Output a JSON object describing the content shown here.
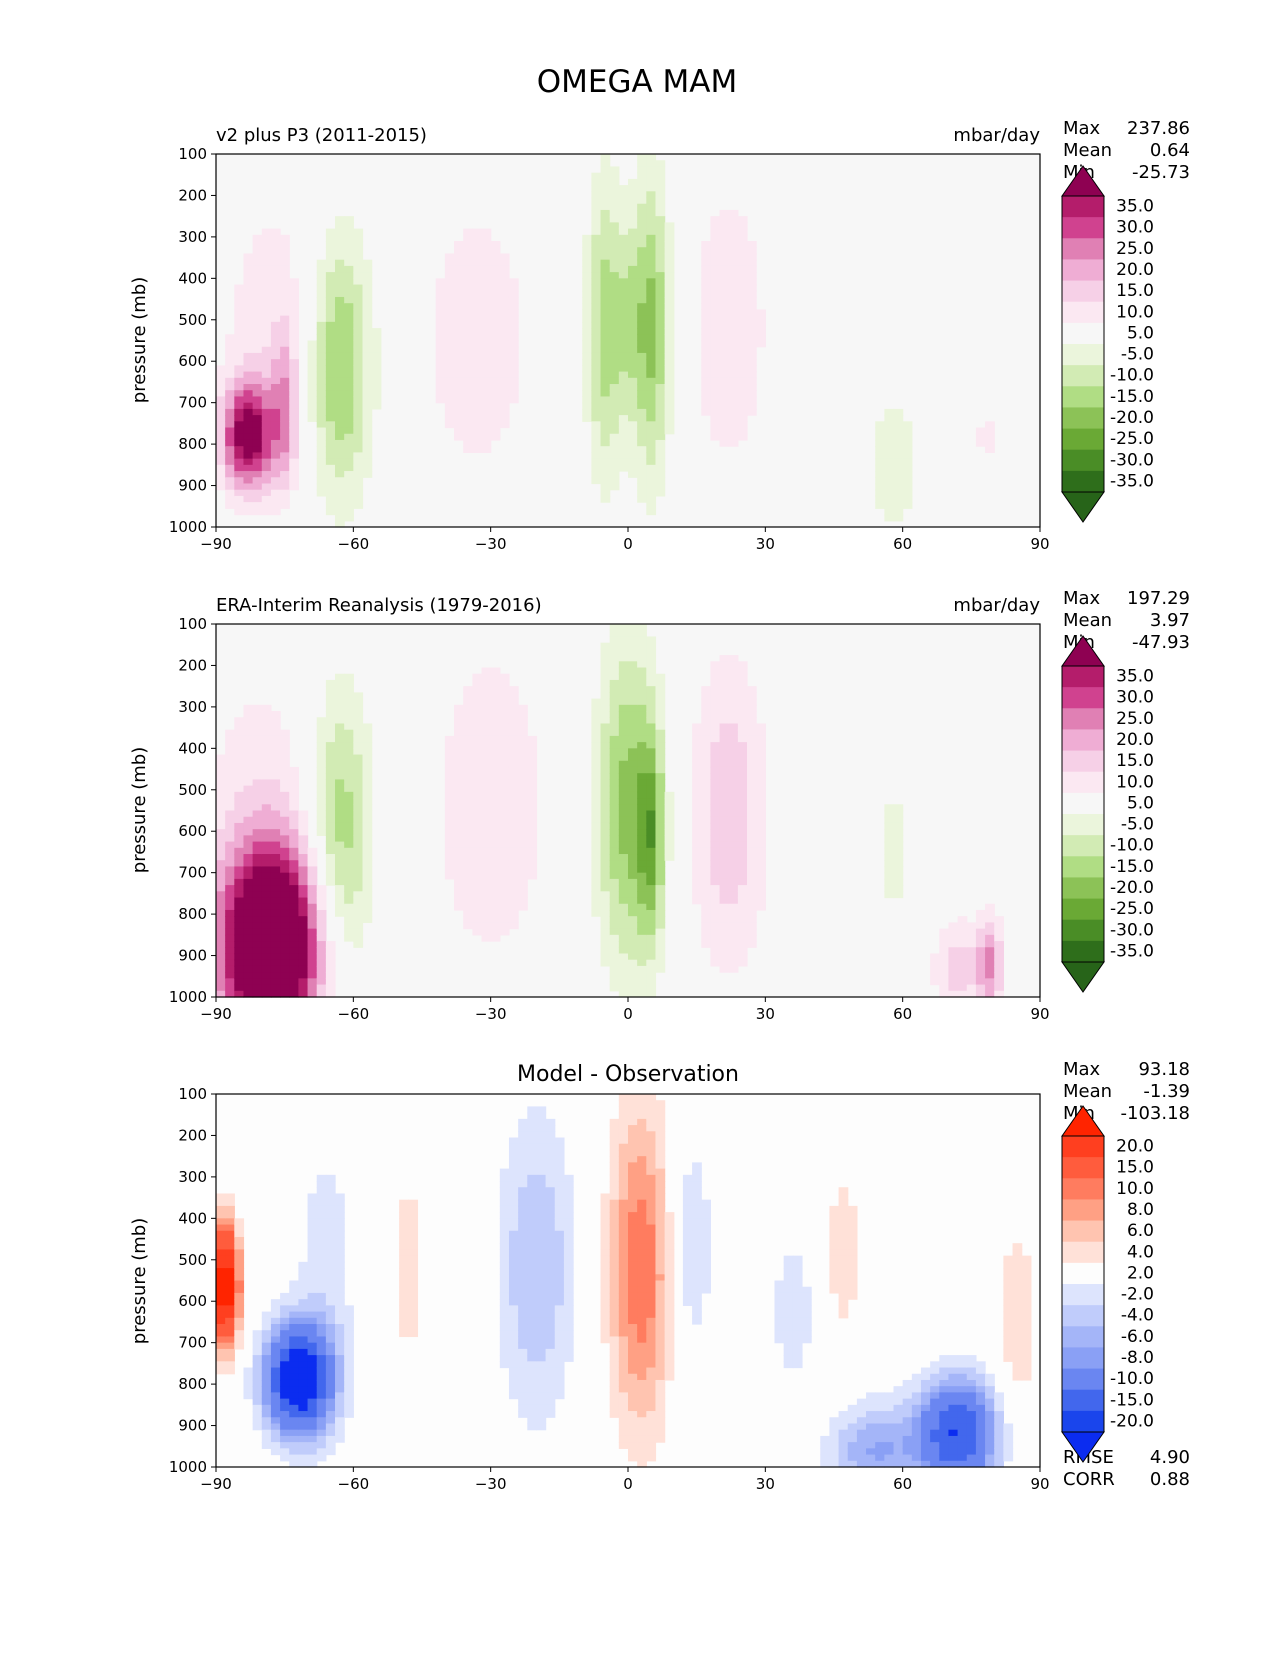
{
  "figure_title": "OMEGA MAM",
  "chart_data": [
    {
      "type": "heatmap",
      "title": "v2 plus P3 (2011-2015)",
      "units": "mbar/day",
      "xlabel": "",
      "ylabel": "pressure (mb)",
      "xlim": [
        -90,
        90
      ],
      "ylim": [
        1000,
        100
      ],
      "xticks": [
        -90,
        -60,
        -30,
        0,
        30,
        60,
        90
      ],
      "xtick_labels": [
        "−90",
        "−60",
        "−30",
        "0",
        "30",
        "60",
        "90"
      ],
      "yticks": [
        100,
        200,
        300,
        400,
        500,
        600,
        700,
        800,
        900,
        1000
      ],
      "stats": {
        "Max": "237.86",
        "Mean": "0.64",
        "Min": "-25.73"
      },
      "colorbar": {
        "levels": [
          "35.0",
          "30.0",
          "25.0",
          "20.0",
          "15.0",
          "10.0",
          "5.0",
          "-5.0",
          "-10.0",
          "-15.0",
          "-20.0",
          "-25.0",
          "-30.0",
          "-35.0"
        ],
        "colors": [
          "#8e0152",
          "#b41d6b",
          "#d0428f",
          "#e080b4",
          "#efadd4",
          "#f6d0e7",
          "#fbe8f2",
          "#f7f7f7",
          "#ebf5dc",
          "#d2ebb4",
          "#b0dd84",
          "#8cc257",
          "#6aa935",
          "#4a8d26",
          "#2e6e1b",
          "#276419"
        ]
      },
      "blobs": [
        {
          "x": -83,
          "p": 780,
          "sx": 4,
          "sp": 90,
          "v": 38
        },
        {
          "x": -77,
          "p": 520,
          "sx": 9,
          "sp": 260,
          "v": 8
        },
        {
          "x": -75,
          "p": 720,
          "sx": 2,
          "sp": 130,
          "v": 16
        },
        {
          "x": -63,
          "p": 610,
          "sx": 5,
          "sp": 230,
          "v": -22
        },
        {
          "x": -33,
          "p": 550,
          "sx": 8,
          "sp": 230,
          "v": 10
        },
        {
          "x": -5,
          "p": 520,
          "sx": 3,
          "sp": 260,
          "v": -18
        },
        {
          "x": 5,
          "p": 520,
          "sx": 3,
          "sp": 260,
          "v": -22
        },
        {
          "x": 0,
          "p": 500,
          "sx": 2,
          "sp": 160,
          "v": -8
        },
        {
          "x": 22,
          "p": 520,
          "sx": 6,
          "sp": 250,
          "v": 10
        },
        {
          "x": 58,
          "p": 850,
          "sx": 7,
          "sp": 230,
          "v": -6
        },
        {
          "x": 78,
          "p": 780,
          "sx": 2,
          "sp": 110,
          "v": 6
        }
      ]
    },
    {
      "type": "heatmap",
      "title": "ERA-Interim Reanalysis (1979-2016)",
      "units": "mbar/day",
      "xlabel": "",
      "ylabel": "pressure (mb)",
      "xlim": [
        -90,
        90
      ],
      "ylim": [
        1000,
        100
      ],
      "xticks": [
        -90,
        -60,
        -30,
        0,
        30,
        60,
        90
      ],
      "xtick_labels": [
        "−90",
        "−60",
        "−30",
        "0",
        "30",
        "60",
        "90"
      ],
      "yticks": [
        100,
        200,
        300,
        400,
        500,
        600,
        700,
        800,
        900,
        1000
      ],
      "stats": {
        "Max": "197.29",
        "Mean": "3.97",
        "Min": "-47.93"
      },
      "colorbar": {
        "levels": [
          "35.0",
          "30.0",
          "25.0",
          "20.0",
          "15.0",
          "10.0",
          "5.0",
          "-5.0",
          "-10.0",
          "-15.0",
          "-20.0",
          "-25.0",
          "-30.0",
          "-35.0"
        ],
        "colors": [
          "#8e0152",
          "#b41d6b",
          "#d0428f",
          "#e080b4",
          "#efadd4",
          "#f6d0e7",
          "#fbe8f2",
          "#f7f7f7",
          "#ebf5dc",
          "#d2ebb4",
          "#b0dd84",
          "#8cc257",
          "#6aa935",
          "#4a8d26",
          "#2e6e1b",
          "#276419"
        ]
      },
      "blobs": [
        {
          "x": -78,
          "p": 880,
          "sx": 8,
          "sp": 170,
          "v": 60
        },
        {
          "x": -80,
          "p": 500,
          "sx": 10,
          "sp": 250,
          "v": 7
        },
        {
          "x": -63,
          "p": 620,
          "sx": 5,
          "sp": 260,
          "v": -20
        },
        {
          "x": -30,
          "p": 540,
          "sx": 9,
          "sp": 280,
          "v": 10
        },
        {
          "x": 0,
          "p": 540,
          "sx": 5,
          "sp": 280,
          "v": -22
        },
        {
          "x": 5,
          "p": 620,
          "sx": 2,
          "sp": 180,
          "v": -18
        },
        {
          "x": 22,
          "p": 560,
          "sx": 6,
          "sp": 270,
          "v": 14
        },
        {
          "x": 58,
          "p": 650,
          "sx": 3,
          "sp": 220,
          "v": -6
        },
        {
          "x": 72,
          "p": 930,
          "sx": 4,
          "sp": 90,
          "v": 12
        },
        {
          "x": 79,
          "p": 920,
          "sx": 2,
          "sp": 80,
          "v": 20
        }
      ]
    },
    {
      "type": "heatmap",
      "title": "Model - Observation",
      "units": "",
      "xlabel": "",
      "ylabel": "pressure (mb)",
      "xlim": [
        -90,
        90
      ],
      "ylim": [
        1000,
        100
      ],
      "xticks": [
        -90,
        -60,
        -30,
        0,
        30,
        60,
        90
      ],
      "xtick_labels": [
        "−90",
        "−60",
        "−30",
        "0",
        "30",
        "60",
        "90"
      ],
      "yticks": [
        100,
        200,
        300,
        400,
        500,
        600,
        700,
        800,
        900,
        1000
      ],
      "stats": {
        "Max": "93.18",
        "Mean": "-1.39",
        "Min": "-103.18"
      },
      "metrics": {
        "RMSE": "4.90",
        "CORR": "0.88"
      },
      "colorbar": {
        "levels": [
          "20.0",
          "15.0",
          "10.0",
          "8.0",
          "6.0",
          "4.0",
          "2.0",
          "-2.0",
          "-4.0",
          "-6.0",
          "-8.0",
          "-10.0",
          "-15.0",
          "-20.0"
        ],
        "colors": [
          "#ff2400",
          "#ff3f1f",
          "#ff5c3d",
          "#ff7c5f",
          "#ffa084",
          "#ffc4b0",
          "#ffe1d8",
          "#fdfdfd",
          "#dde4fd",
          "#c0ccfb",
          "#a4b5f8",
          "#8aa0f5",
          "#6a86f1",
          "#4267ed",
          "#1a45ec",
          "#0b2cf0"
        ]
      },
      "blobs": [
        {
          "x": -72,
          "p": 790,
          "sx": 5,
          "sp": 90,
          "v": -26
        },
        {
          "x": -88,
          "p": 560,
          "sx": 2,
          "sp": 100,
          "v": 25
        },
        {
          "x": -66,
          "p": 520,
          "sx": 5,
          "sp": 260,
          "v": -3
        },
        {
          "x": -48,
          "p": 520,
          "sx": 2,
          "sp": 230,
          "v": 3
        },
        {
          "x": -20,
          "p": 520,
          "sx": 6,
          "sp": 260,
          "v": -6
        },
        {
          "x": 3,
          "p": 520,
          "sx": 5,
          "sp": 270,
          "v": 10
        },
        {
          "x": 13,
          "p": 470,
          "sx": 4,
          "sp": 230,
          "v": -4
        },
        {
          "x": 36,
          "p": 630,
          "sx": 3,
          "sp": 120,
          "v": -4
        },
        {
          "x": 54,
          "p": 960,
          "sx": 7,
          "sp": 80,
          "v": -8
        },
        {
          "x": 72,
          "p": 920,
          "sx": 6,
          "sp": 90,
          "v": -20
        },
        {
          "x": 47,
          "p": 480,
          "sx": 3,
          "sp": 180,
          "v": 3
        },
        {
          "x": 85,
          "p": 660,
          "sx": 4,
          "sp": 230,
          "v": 3
        }
      ]
    }
  ]
}
